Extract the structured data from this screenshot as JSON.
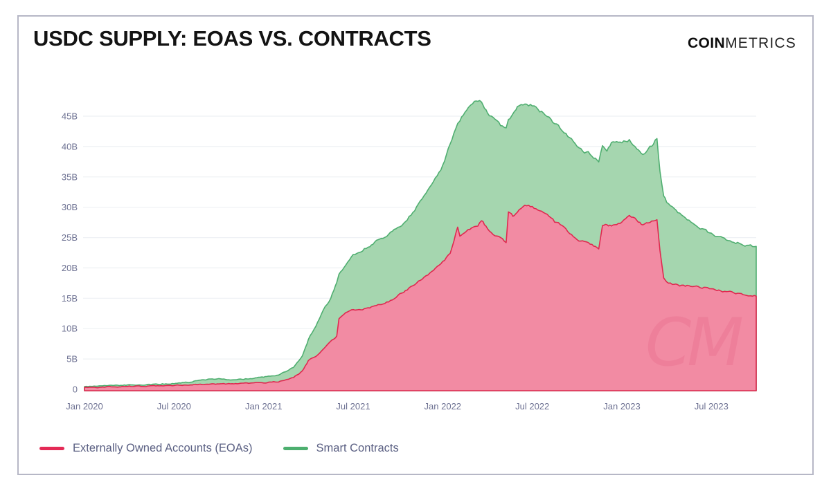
{
  "header": {
    "title": "USDC SUPPLY: EOAS VS. CONTRACTS",
    "logo_bold": "COIN",
    "logo_light": "METRICS"
  },
  "legend": [
    {
      "label": "Externally Owned Accounts (EOAs)",
      "color": "#e42a56"
    },
    {
      "label": "Smart Contracts",
      "color": "#4daf6f"
    }
  ],
  "watermark": "CM",
  "chart_data": {
    "type": "area",
    "stacked": true,
    "title": "USDC SUPPLY: EOAS VS. CONTRACTS",
    "x_unit": "months since Jan 2020",
    "y_unit": "billions of USDC",
    "ylim": [
      0,
      48
    ],
    "grid": "horizontal",
    "legend_position": "bottom-left",
    "colors": {
      "grid": "#eef0f4",
      "axis_text": "#6d7192",
      "watermark": "#d7466e"
    },
    "y_ticks": [
      {
        "value": 0,
        "label": "0"
      },
      {
        "value": 5,
        "label": "5B"
      },
      {
        "value": 10,
        "label": "10B"
      },
      {
        "value": 15,
        "label": "15B"
      },
      {
        "value": 20,
        "label": "20B"
      },
      {
        "value": 25,
        "label": "25B"
      },
      {
        "value": 30,
        "label": "30B"
      },
      {
        "value": 35,
        "label": "35B"
      },
      {
        "value": 40,
        "label": "40B"
      },
      {
        "value": 45,
        "label": "45B"
      }
    ],
    "x_ticks": [
      {
        "t": 0,
        "label": "Jan 2020"
      },
      {
        "t": 6,
        "label": "Jul 2020"
      },
      {
        "t": 12,
        "label": "Jan 2021"
      },
      {
        "t": 18,
        "label": "Jul 2021"
      },
      {
        "t": 24,
        "label": "Jan 2022"
      },
      {
        "t": 30,
        "label": "Jul 2022"
      },
      {
        "t": 36,
        "label": "Jan 2023"
      },
      {
        "t": 42,
        "label": "Jul 2023"
      }
    ],
    "series": [
      {
        "name": "Externally Owned Accounts (EOAs)",
        "key": "eoa",
        "fill": "#f28ba3",
        "stroke": "#e0284f"
      },
      {
        "name": "Smart Contracts",
        "key": "contracts",
        "fill": "#a5d6af",
        "stroke": "#4fae70"
      }
    ],
    "points_format": [
      "t_months",
      "eoa_billions",
      "contracts_billions"
    ],
    "points": [
      [
        0,
        0.3,
        0.15
      ],
      [
        1,
        0.35,
        0.17
      ],
      [
        2,
        0.42,
        0.2
      ],
      [
        3,
        0.5,
        0.22
      ],
      [
        4,
        0.52,
        0.24
      ],
      [
        5,
        0.58,
        0.27
      ],
      [
        6,
        0.65,
        0.33
      ],
      [
        7,
        0.7,
        0.45
      ],
      [
        8,
        0.8,
        0.85
      ],
      [
        9,
        0.85,
        0.85
      ],
      [
        10,
        0.9,
        0.65
      ],
      [
        11,
        1,
        0.75
      ],
      [
        12,
        1.1,
        0.9
      ],
      [
        13,
        1.3,
        1.1
      ],
      [
        14,
        1.9,
        1.7
      ],
      [
        14.6,
        3,
        2.5
      ],
      [
        15,
        4.7,
        3.5
      ],
      [
        15.5,
        5.5,
        5
      ],
      [
        16,
        6.6,
        6.4
      ],
      [
        16.5,
        7.8,
        7.2
      ],
      [
        16.9,
        8.7,
        8.8
      ],
      [
        17.05,
        11.5,
        7.3
      ],
      [
        17.5,
        12.5,
        8
      ],
      [
        18,
        13.2,
        8.8
      ],
      [
        18.5,
        13,
        9.8
      ],
      [
        19,
        13.5,
        10
      ],
      [
        20,
        14,
        11
      ],
      [
        20.5,
        14.6,
        11.2
      ],
      [
        21,
        15.4,
        11.1
      ],
      [
        21.5,
        16.2,
        11.6
      ],
      [
        22,
        17.1,
        12.1
      ],
      [
        22.5,
        18,
        12.8
      ],
      [
        23,
        18.9,
        13.7
      ],
      [
        23.5,
        19.8,
        14.7
      ],
      [
        24,
        21,
        15.9
      ],
      [
        24.5,
        22.3,
        18.2
      ],
      [
        25,
        26.8,
        17.2
      ],
      [
        25.15,
        25.2,
        19.1
      ],
      [
        25.6,
        26.2,
        20.1
      ],
      [
        26,
        26.5,
        20.9
      ],
      [
        26.35,
        27,
        20.8
      ],
      [
        26.6,
        27.8,
        19.4
      ],
      [
        27,
        26.5,
        19.1
      ],
      [
        27.5,
        25.4,
        18.8
      ],
      [
        28,
        24.7,
        18.5
      ],
      [
        28.25,
        24.2,
        18.6
      ],
      [
        28.4,
        29.2,
        15
      ],
      [
        28.7,
        28.6,
        16.7
      ],
      [
        29,
        29.3,
        17
      ],
      [
        29.5,
        30.5,
        16.5
      ],
      [
        30,
        30.1,
        16.6
      ],
      [
        30.5,
        29.4,
        16.5
      ],
      [
        31,
        28.8,
        16.3
      ],
      [
        31.5,
        27.6,
        16
      ],
      [
        32,
        26.9,
        15.9
      ],
      [
        32.5,
        25.8,
        15.7
      ],
      [
        33,
        24.8,
        15.4
      ],
      [
        33.5,
        24.2,
        15.1
      ],
      [
        34,
        23.7,
        14.9
      ],
      [
        34.45,
        23.3,
        14.4
      ],
      [
        34.7,
        26.9,
        13.4
      ],
      [
        35,
        27.2,
        12.4
      ],
      [
        35.3,
        27,
        13.8
      ],
      [
        36,
        27.7,
        12.8
      ],
      [
        36.5,
        28.6,
        12.4
      ],
      [
        37,
        27.8,
        12
      ],
      [
        37.4,
        27,
        11.8
      ],
      [
        38,
        27.6,
        12.5
      ],
      [
        38.35,
        28.2,
        13.3
      ],
      [
        38.55,
        23,
        13
      ],
      [
        38.8,
        18.5,
        13.5
      ],
      [
        39,
        17.6,
        13.4
      ],
      [
        39.5,
        17.3,
        12.5
      ],
      [
        40,
        17.1,
        11.5
      ],
      [
        40.5,
        17,
        10.8
      ],
      [
        41,
        16.9,
        10.2
      ],
      [
        41.5,
        16.8,
        9.5
      ],
      [
        42,
        16.6,
        9
      ],
      [
        42.5,
        16.3,
        8.8
      ],
      [
        43,
        16.1,
        8.5
      ],
      [
        43.5,
        15.9,
        8.4
      ],
      [
        44,
        15.7,
        8.3
      ],
      [
        44.5,
        15.6,
        8.1
      ],
      [
        45,
        15.5,
        7.9
      ]
    ]
  }
}
